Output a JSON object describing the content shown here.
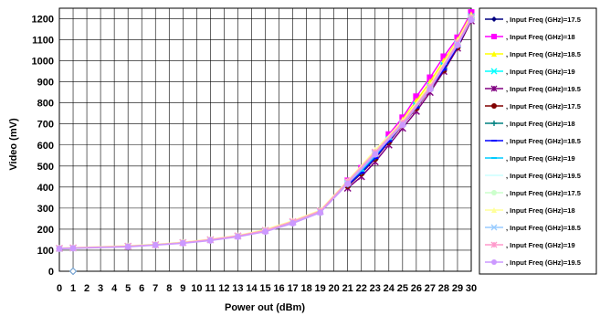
{
  "chart_data": {
    "type": "line",
    "title": "",
    "xlabel": "Power out (dBm)",
    "ylabel": "Video (mV)",
    "xlim": [
      0,
      30
    ],
    "ylim": [
      0,
      1250
    ],
    "xticks": [
      0,
      1,
      2,
      3,
      4,
      5,
      6,
      7,
      8,
      9,
      10,
      11,
      12,
      13,
      14,
      15,
      16,
      17,
      18,
      19,
      20,
      21,
      22,
      23,
      24,
      25,
      26,
      27,
      28,
      29,
      30
    ],
    "yticks": [
      0,
      100,
      200,
      300,
      400,
      500,
      600,
      700,
      800,
      900,
      1000,
      1100,
      1200
    ],
    "grid": true,
    "legend_position": "right",
    "series": [
      {
        "name": ", Input Freq (GHz)=17.5",
        "color": "#000080",
        "marker": "diamond",
        "x": [
          21,
          22,
          23,
          24,
          25,
          26,
          27,
          28,
          29,
          30
        ],
        "y": [
          410,
          470,
          540,
          620,
          700,
          780,
          870,
          960,
          1070,
          1200
        ]
      },
      {
        "name": ", Input Freq (GHz)=18",
        "color": "#ff00ff",
        "marker": "square",
        "x": [
          21,
          22,
          23,
          24,
          25,
          26,
          27,
          28,
          29,
          30
        ],
        "y": [
          430,
          490,
          560,
          650,
          730,
          830,
          920,
          1020,
          1110,
          1230
        ]
      },
      {
        "name": ", Input Freq (GHz)=18.5",
        "color": "#ffff00",
        "marker": "triangle",
        "x": [
          21,
          22,
          23,
          24,
          25,
          26,
          27,
          28,
          29,
          30
        ],
        "y": [
          420,
          480,
          550,
          630,
          720,
          810,
          900,
          1000,
          1100,
          1220
        ]
      },
      {
        "name": ", Input Freq (GHz)=19",
        "color": "#00ffff",
        "marker": "x",
        "x": [
          21,
          22,
          23,
          24,
          25,
          26,
          27,
          28,
          29,
          30
        ],
        "y": [
          415,
          475,
          545,
          625,
          705,
          790,
          880,
          980,
          1080,
          1210
        ]
      },
      {
        "name": ", Input Freq (GHz)=19.5",
        "color": "#800080",
        "marker": "star",
        "x": [
          21,
          22,
          23,
          24,
          25,
          26,
          27,
          28,
          29,
          30
        ],
        "y": [
          395,
          450,
          520,
          600,
          680,
          760,
          850,
          950,
          1060,
          1190
        ]
      },
      {
        "name": ", Input Freq (GHz)=17.5",
        "color": "#800000",
        "marker": "circle",
        "x": [
          21,
          22,
          23,
          24,
          25,
          26,
          27,
          28,
          29,
          30
        ],
        "y": [
          405,
          465,
          535,
          615,
          695,
          775,
          865,
          955,
          1065,
          1195
        ]
      },
      {
        "name": ", Input Freq (GHz)=18",
        "color": "#008080",
        "marker": "plus",
        "x": [
          21,
          22,
          23,
          24,
          25,
          26,
          27,
          28,
          29,
          30
        ],
        "y": [
          412,
          472,
          542,
          622,
          702,
          785,
          875,
          965,
          1072,
          1205
        ]
      },
      {
        "name": ", Input Freq (GHz)=18.5",
        "color": "#0000ff",
        "marker": "dash",
        "x": [
          21,
          22,
          23,
          24,
          25,
          26,
          27,
          28,
          29,
          30
        ],
        "y": [
          408,
          468,
          538,
          618,
          698,
          778,
          868,
          958,
          1068,
          1198
        ]
      },
      {
        "name": ", Input Freq (GHz)=19",
        "color": "#00ccff",
        "marker": "dash",
        "x": [
          21,
          22,
          23,
          24,
          25,
          26,
          27,
          28,
          29,
          30
        ],
        "y": [
          418,
          478,
          548,
          628,
          708,
          795,
          885,
          985,
          1085,
          1212
        ]
      },
      {
        "name": ", Input Freq (GHz)=19.5",
        "color": "#ccffff",
        "marker": "none",
        "x": [
          0,
          1,
          5,
          7,
          9,
          11,
          13,
          15,
          17,
          19,
          21,
          23,
          25,
          27,
          29,
          30
        ],
        "y": [
          108,
          110,
          118,
          125,
          135,
          148,
          165,
          190,
          230,
          280,
          420,
          560,
          700,
          870,
          1080,
          1200
        ]
      },
      {
        "name": ", Input Freq (GHz)=17.5",
        "color": "#ccffcc",
        "marker": "circle",
        "x": [
          0,
          1,
          5,
          7,
          9,
          11,
          13,
          15,
          17,
          19,
          21,
          23,
          25,
          27,
          29,
          30
        ],
        "y": [
          109,
          111,
          120,
          127,
          137,
          150,
          168,
          195,
          235,
          285,
          425,
          565,
          705,
          875,
          1085,
          1205
        ]
      },
      {
        "name": ", Input Freq (GHz)=18",
        "color": "#ffff99",
        "marker": "triangle",
        "x": [
          0,
          1,
          5,
          7,
          9,
          11,
          13,
          15,
          17,
          19,
          21,
          23,
          25,
          27,
          29,
          30
        ],
        "y": [
          110,
          112,
          121,
          128,
          138,
          152,
          170,
          198,
          240,
          290,
          430,
          575,
          715,
          885,
          1095,
          1215
        ]
      },
      {
        "name": ", Input Freq (GHz)=18.5",
        "color": "#99ccff",
        "marker": "x",
        "x": [
          0,
          1,
          5,
          7,
          9,
          11,
          13,
          15,
          17,
          19,
          21,
          23,
          25,
          27,
          29,
          30
        ],
        "y": [
          108,
          110,
          119,
          126,
          136,
          149,
          167,
          193,
          233,
          283,
          422,
          562,
          702,
          872,
          1082,
          1202
        ]
      },
      {
        "name": ", Input Freq (GHz)=19",
        "color": "#ff99cc",
        "marker": "star",
        "x": [
          0,
          1,
          5,
          7,
          9,
          11,
          13,
          15,
          17,
          19,
          21,
          23,
          25,
          27,
          29,
          30
        ],
        "y": [
          109,
          111,
          119,
          126,
          136,
          150,
          168,
          194,
          236,
          286,
          426,
          566,
          706,
          876,
          1086,
          1206
        ]
      },
      {
        "name": ", Input Freq (GHz)=19.5",
        "color": "#cc99ff",
        "marker": "circle",
        "x": [
          0,
          1,
          5,
          7,
          9,
          11,
          13,
          15,
          17,
          19,
          21,
          23,
          25,
          27,
          29,
          30
        ],
        "y": [
          107,
          109,
          116,
          124,
          133,
          146,
          164,
          188,
          228,
          278,
          415,
          555,
          695,
          865,
          1075,
          1195
        ]
      }
    ],
    "annotation_points": [
      {
        "x": 1,
        "y": 0,
        "marker": "open-diamond",
        "color": "#6699cc"
      }
    ]
  }
}
